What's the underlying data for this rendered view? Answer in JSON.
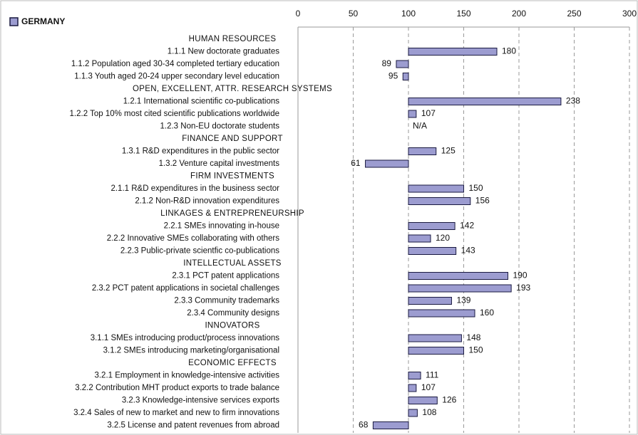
{
  "chart_data": {
    "type": "bar",
    "series_name": "GERMANY",
    "color": "#9c9cd0",
    "edge_color": "#1a1a40",
    "base": 100,
    "xlim": [
      0,
      300
    ],
    "xticks": [
      0,
      50,
      100,
      150,
      200,
      250,
      300
    ],
    "grid": true,
    "groups": [
      {
        "name": "HUMAN RESOURCES",
        "categories": [
          "1.1.1 New doctorate graduates",
          "1.1.2 Population aged 30-34 completed tertiary education",
          "1.1.3 Youth aged 20-24 upper secondary level education"
        ],
        "values": [
          180,
          89,
          95
        ]
      },
      {
        "name": "OPEN, EXCELLENT, ATTR. RESEARCH SYSTEMS",
        "categories": [
          "1.2.1 International scientific co-publications",
          "1.2.2 Top 10% most cited scientific publications worldwide",
          "1.2.3 Non-EU doctorate students"
        ],
        "values": [
          238,
          107,
          null
        ],
        "value_labels": [
          null,
          null,
          "N/A"
        ]
      },
      {
        "name": "FINANCE AND SUPPORT",
        "categories": [
          "1.3.1 R&D expenditures in the public sector",
          "1.3.2 Venture capital investments"
        ],
        "values": [
          125,
          61
        ]
      },
      {
        "name": "FIRM INVESTMENTS",
        "categories": [
          "2.1.1 R&D expenditures in the business sector",
          "2.1.2 Non-R&D innovation expenditures"
        ],
        "values": [
          150,
          156
        ]
      },
      {
        "name": "LINKAGES & ENTREPRENEURSHIP",
        "categories": [
          "2.2.1 SMEs innovating in-house",
          "2.2.2 Innovative SMEs collaborating with others",
          "2.2.3 Public-private scientfic co-publications"
        ],
        "values": [
          142,
          120,
          143
        ]
      },
      {
        "name": "INTELLECTUAL ASSETS",
        "categories": [
          "2.3.1 PCT patent applications",
          "2.3.2 PCT patent applications in societal challenges",
          "2.3.3 Community trademarks",
          "2.3.4 Community designs"
        ],
        "values": [
          190,
          193,
          139,
          160
        ]
      },
      {
        "name": "INNOVATORS",
        "categories": [
          "3.1.1 SMEs introducing product/process innovations",
          "3.1.2 SMEs introducing marketing/organisational"
        ],
        "values": [
          148,
          150
        ]
      },
      {
        "name": "ECONOMIC EFFECTS",
        "categories": [
          "3.2.1 Employment in knowledge-intensive activities",
          "3.2.2 Contribution MHT product exports to trade balance",
          "3.2.3 Knowledge-intensive services exports",
          "3.2.4 Sales of new to market and new to firm innovations",
          "3.2.5 License and patent revenues from abroad"
        ],
        "values": [
          111,
          107,
          126,
          108,
          68
        ]
      }
    ]
  }
}
